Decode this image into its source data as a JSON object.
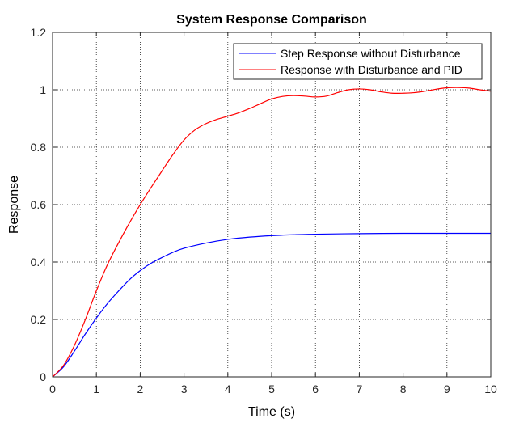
{
  "chart_data": {
    "type": "line",
    "title": "System Response Comparison",
    "xlabel": "Time (s)",
    "ylabel": "Response",
    "xlim": [
      0,
      10
    ],
    "ylim": [
      0,
      1.2
    ],
    "xticks": [
      0,
      1,
      2,
      3,
      4,
      5,
      6,
      7,
      8,
      9,
      10
    ],
    "xtick_labels": [
      "0",
      "1",
      "2",
      "3",
      "4",
      "5",
      "6",
      "7",
      "8",
      "9",
      "10"
    ],
    "yticks": [
      0,
      0.2,
      0.4,
      0.6,
      0.8,
      1,
      1.2
    ],
    "ytick_labels": [
      "0",
      "0.2",
      "0.4",
      "0.6",
      "0.8",
      "1",
      "1.2"
    ],
    "grid": true,
    "legend_position": "top-right",
    "series": [
      {
        "name": "Step Response without Disturbance",
        "color": "#0000ff",
        "x": [
          0,
          0.25,
          0.5,
          0.75,
          1,
          1.25,
          1.5,
          1.75,
          2,
          2.25,
          2.5,
          2.75,
          3,
          3.5,
          4,
          4.5,
          5,
          5.5,
          6,
          7,
          8,
          9,
          10
        ],
        "y": [
          0,
          0.035,
          0.09,
          0.15,
          0.205,
          0.255,
          0.298,
          0.338,
          0.37,
          0.396,
          0.416,
          0.434,
          0.448,
          0.466,
          0.479,
          0.487,
          0.492,
          0.495,
          0.497,
          0.499,
          0.5,
          0.5,
          0.5
        ]
      },
      {
        "name": "Response with Disturbance and PID",
        "color": "#ff0000",
        "x": [
          0,
          0.25,
          0.5,
          0.75,
          1,
          1.25,
          1.5,
          1.75,
          2,
          2.25,
          2.5,
          2.75,
          3,
          3.25,
          3.5,
          3.75,
          4,
          4.25,
          4.5,
          4.75,
          5,
          5.25,
          5.5,
          5.75,
          6,
          6.25,
          6.5,
          6.75,
          7,
          7.25,
          7.5,
          7.75,
          8,
          8.25,
          8.5,
          8.75,
          9,
          9.25,
          9.5,
          9.75,
          10
        ],
        "y": [
          0,
          0.04,
          0.11,
          0.2,
          0.3,
          0.39,
          0.465,
          0.535,
          0.6,
          0.66,
          0.718,
          0.775,
          0.825,
          0.86,
          0.882,
          0.897,
          0.908,
          0.92,
          0.935,
          0.952,
          0.968,
          0.977,
          0.98,
          0.978,
          0.975,
          0.978,
          0.99,
          1.0,
          1.003,
          1.0,
          0.993,
          0.988,
          0.988,
          0.99,
          0.995,
          1.002,
          1.007,
          1.008,
          1.006,
          1.0,
          0.995
        ]
      }
    ]
  }
}
